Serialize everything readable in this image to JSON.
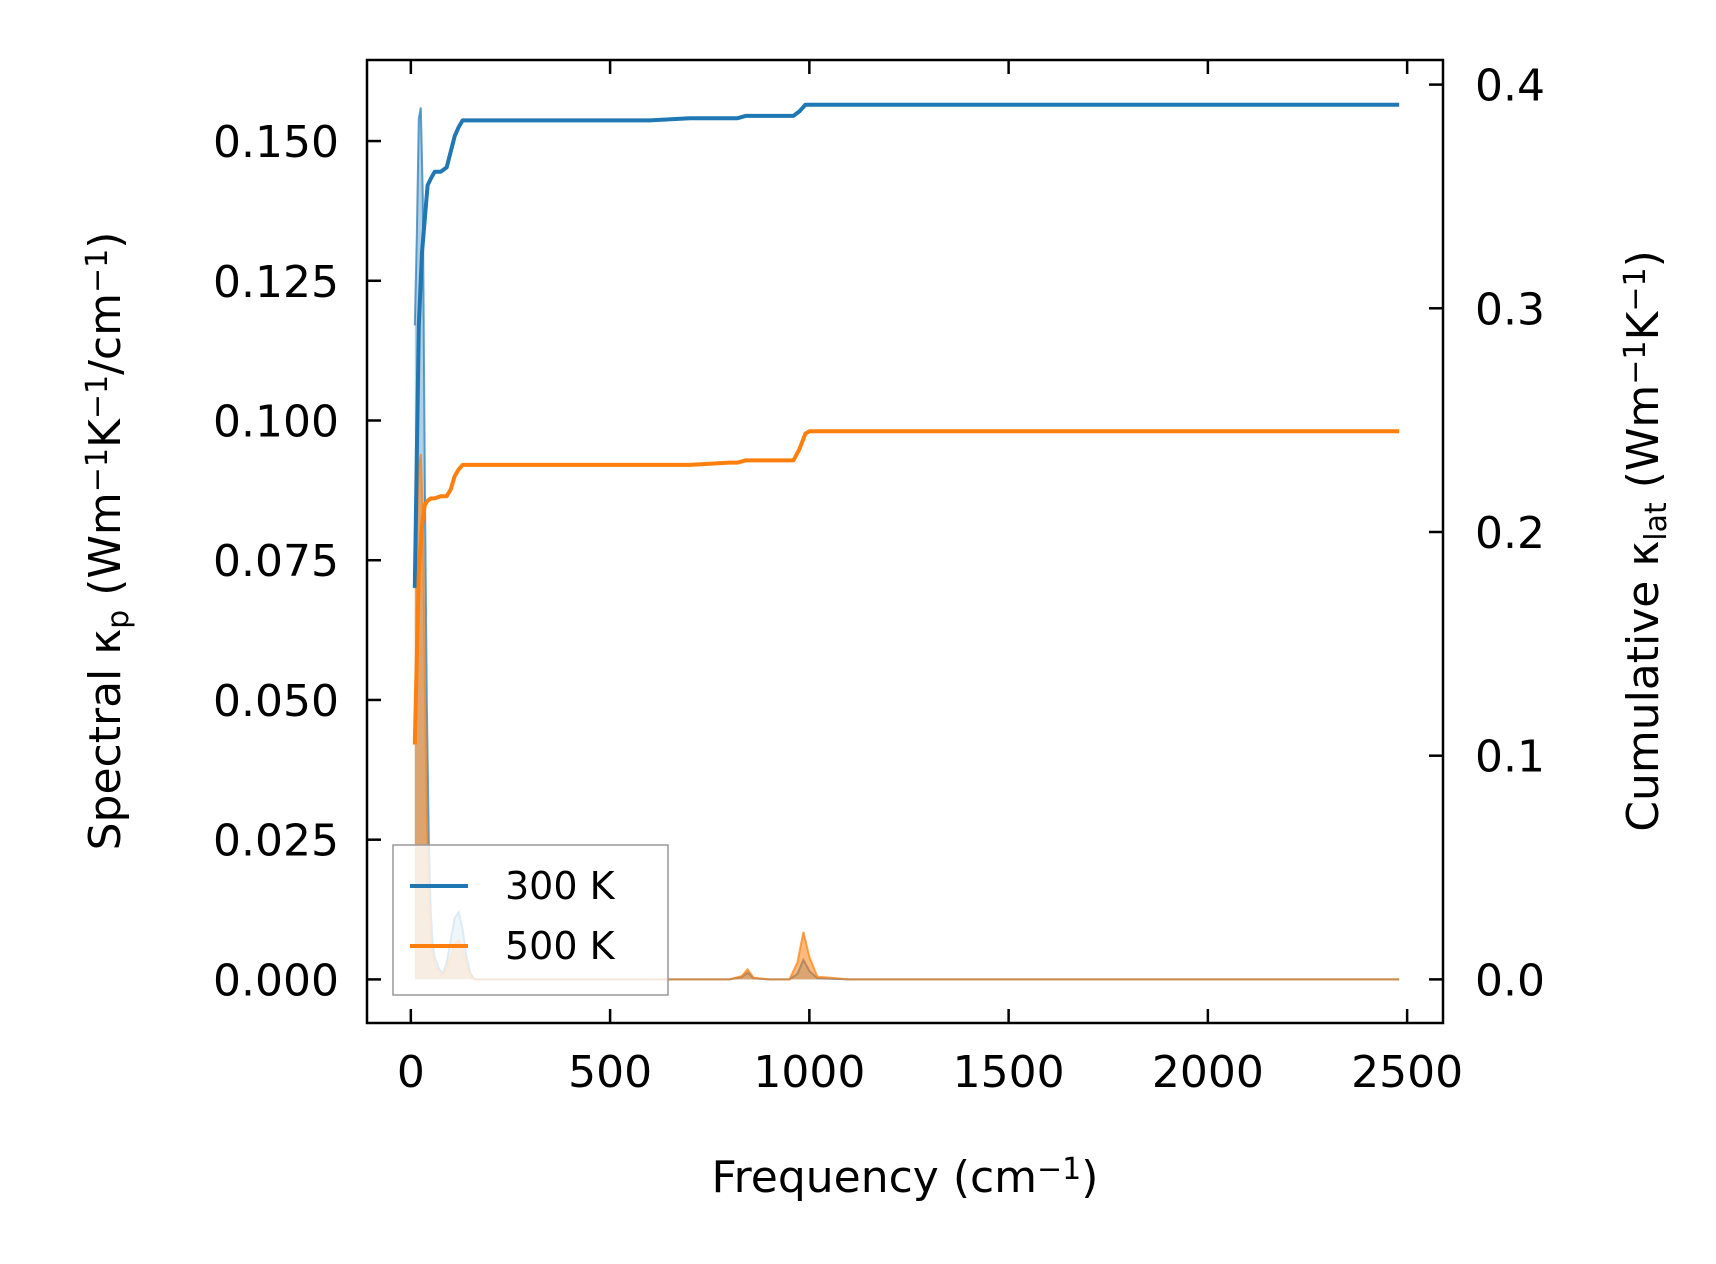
{
  "chart_data": {
    "type": "line",
    "xlabel": {
      "main": "Frequency (cm",
      "sup": "−1",
      "end": ")"
    },
    "ylabel_left": {
      "parts": [
        {
          "t": "Spectral κ",
          "k": "n"
        },
        {
          "t": "p",
          "k": "sub"
        },
        {
          "t": " (Wm",
          "k": "n"
        },
        {
          "t": "−1",
          "k": "sup"
        },
        {
          "t": "K",
          "k": "n"
        },
        {
          "t": "−1",
          "k": "sup"
        },
        {
          "t": "/cm",
          "k": "n"
        },
        {
          "t": "−1",
          "k": "sup"
        },
        {
          "t": ")",
          "k": "n"
        }
      ]
    },
    "ylabel_right": {
      "parts": [
        {
          "t": "Cumulative κ",
          "k": "n"
        },
        {
          "t": "lat",
          "k": "sub"
        },
        {
          "t": " (Wm",
          "k": "n"
        },
        {
          "t": "−1",
          "k": "sup"
        },
        {
          "t": "K",
          "k": "n"
        },
        {
          "t": "−1",
          "k": "sup"
        },
        {
          "t": ")",
          "k": "n"
        }
      ]
    },
    "xlim": [
      -110,
      2590
    ],
    "ylim_left": [
      -0.0078,
      0.1645
    ],
    "ylim_right": [
      -0.0195,
      0.411
    ],
    "xticks": [
      0,
      500,
      1000,
      1500,
      2000,
      2500
    ],
    "xtick_labels": [
      "0",
      "500",
      "1000",
      "1500",
      "2000",
      "2500"
    ],
    "yticks_left": [
      0.0,
      0.025,
      0.05,
      0.075,
      0.1,
      0.125,
      0.15
    ],
    "ytick_labels_left": [
      "0.000",
      "0.025",
      "0.050",
      "0.075",
      "0.100",
      "0.125",
      "0.150"
    ],
    "yticks_right": [
      0.0,
      0.1,
      0.2,
      0.3,
      0.4
    ],
    "ytick_labels_right": [
      "0.0",
      "0.1",
      "0.2",
      "0.3",
      "0.4"
    ],
    "legend": {
      "position": "lower-left"
    },
    "series": [
      {
        "name": "300 K",
        "color": "#1f77b4",
        "cumulative": {
          "x": [
            10,
            20,
            28,
            35,
            42,
            50,
            60,
            75,
            90,
            100,
            110,
            120,
            130,
            200,
            400,
            600,
            700,
            800,
            820,
            840,
            900,
            960,
            975,
            990,
            1000,
            1050,
            1500,
            2000,
            2480
          ],
          "y": [
            0.175,
            0.292,
            0.325,
            0.34,
            0.355,
            0.358,
            0.361,
            0.361,
            0.363,
            0.37,
            0.377,
            0.381,
            0.384,
            0.384,
            0.384,
            0.384,
            0.385,
            0.385,
            0.385,
            0.386,
            0.386,
            0.386,
            0.388,
            0.391,
            0.391,
            0.391,
            0.391,
            0.391,
            0.391
          ]
        },
        "spectral": {
          "x": [
            10,
            15,
            20,
            25,
            30,
            35,
            40,
            45,
            50,
            55,
            60,
            70,
            80,
            90,
            100,
            110,
            120,
            130,
            140,
            150,
            160,
            200,
            500,
            700,
            800,
            830,
            845,
            860,
            900,
            950,
            970,
            985,
            1000,
            1020,
            1100,
            1500,
            2000,
            2480
          ],
          "y": [
            0.117,
            0.133,
            0.154,
            0.156,
            0.14,
            0.09,
            0.05,
            0.025,
            0.012,
            0.006,
            0.004,
            0.002,
            0.001,
            0.003,
            0.007,
            0.011,
            0.012,
            0.009,
            0.004,
            0.001,
            0.0,
            0.0,
            0.0,
            0.0,
            0.0,
            0.0004,
            0.0012,
            0.0002,
            0.0,
            0.0,
            0.001,
            0.0035,
            0.0015,
            0.0002,
            0.0,
            0.0,
            0.0,
            0.0
          ]
        }
      },
      {
        "name": "500 K",
        "color": "#ff7f0e",
        "cumulative": {
          "x": [
            10,
            20,
            28,
            35,
            42,
            50,
            60,
            75,
            90,
            100,
            110,
            120,
            130,
            200,
            400,
            600,
            700,
            800,
            820,
            840,
            900,
            960,
            975,
            990,
            1000,
            1050,
            1500,
            2000,
            2480
          ],
          "y": [
            0.105,
            0.182,
            0.203,
            0.212,
            0.214,
            0.215,
            0.215,
            0.216,
            0.216,
            0.219,
            0.225,
            0.228,
            0.23,
            0.23,
            0.23,
            0.23,
            0.23,
            0.231,
            0.231,
            0.232,
            0.232,
            0.232,
            0.237,
            0.244,
            0.245,
            0.245,
            0.245,
            0.245,
            0.245
          ]
        },
        "spectral": {
          "x": [
            10,
            15,
            20,
            25,
            30,
            35,
            40,
            45,
            50,
            55,
            60,
            70,
            80,
            90,
            100,
            110,
            120,
            130,
            140,
            150,
            160,
            200,
            500,
            700,
            800,
            830,
            845,
            860,
            900,
            950,
            970,
            985,
            1000,
            1020,
            1100,
            1500,
            2000,
            2480
          ],
          "y": [
            0.07,
            0.08,
            0.092,
            0.094,
            0.083,
            0.054,
            0.03,
            0.015,
            0.007,
            0.004,
            0.0025,
            0.0012,
            0.0006,
            0.002,
            0.004,
            0.0065,
            0.007,
            0.0055,
            0.0025,
            0.0006,
            0.0,
            0.0,
            0.0,
            0.0,
            0.0,
            0.0006,
            0.0018,
            0.0003,
            0.0,
            0.0,
            0.003,
            0.0085,
            0.004,
            0.0005,
            0.0,
            0.0,
            0.0,
            0.0
          ]
        }
      }
    ]
  }
}
